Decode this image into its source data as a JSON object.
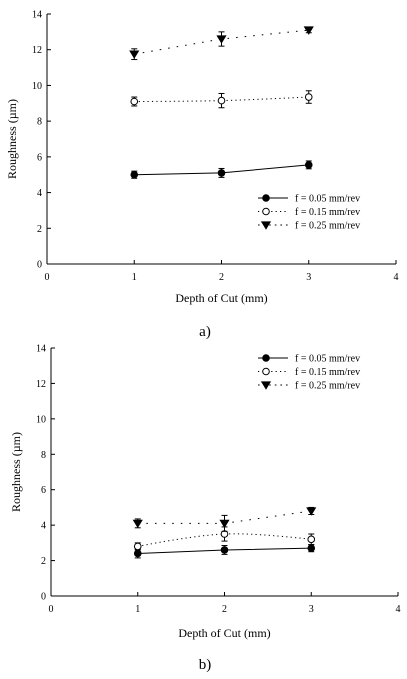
{
  "colors": {
    "axis": "#000000",
    "marker": "#000000",
    "open_marker_fill": "#ffffff"
  },
  "chart_data": [
    {
      "type": "line",
      "caption": "a)",
      "xlabel": "Depth of Cut (mm)",
      "ylabel": "Roughness (µm)",
      "xlim": [
        0,
        4
      ],
      "ylim": [
        0,
        14
      ],
      "xticks": [
        0,
        1,
        2,
        3,
        4
      ],
      "yticks": [
        0,
        2,
        4,
        6,
        8,
        10,
        12,
        14
      ],
      "grid": false,
      "legend_position": "bottom-right",
      "x": [
        1,
        2,
        3
      ],
      "series": [
        {
          "name": "f = 0.05 mm/rev",
          "marker": "filled-circle",
          "line": "solid",
          "values": [
            5.0,
            5.1,
            5.55
          ],
          "errors": [
            0.2,
            0.25,
            0.22
          ]
        },
        {
          "name": "f = 0.15 mm/rev",
          "marker": "open-circle",
          "line": "dotted",
          "values": [
            9.1,
            9.15,
            9.35
          ],
          "errors": [
            0.25,
            0.4,
            0.35
          ]
        },
        {
          "name": "f = 0.25 mm/rev",
          "marker": "filled-triangle-down",
          "line": "dashed",
          "values": [
            11.75,
            12.6,
            13.1
          ],
          "errors": [
            0.3,
            0.4,
            0.15
          ]
        }
      ]
    },
    {
      "type": "line",
      "caption": "b)",
      "xlabel": "Depth of Cut (mm)",
      "ylabel": "Roughness (µm)",
      "xlim": [
        0,
        4
      ],
      "ylim": [
        0,
        14
      ],
      "xticks": [
        0,
        1,
        2,
        3,
        4
      ],
      "yticks": [
        0,
        2,
        4,
        6,
        8,
        10,
        12,
        14
      ],
      "grid": false,
      "legend_position": "top-right",
      "x": [
        1,
        2,
        3
      ],
      "series": [
        {
          "name": "f = 0.05 mm/rev",
          "marker": "filled-circle",
          "line": "solid",
          "values": [
            2.4,
            2.6,
            2.7
          ],
          "errors": [
            0.25,
            0.25,
            0.2
          ]
        },
        {
          "name": "f = 0.15 mm/rev",
          "marker": "open-circle",
          "line": "dotted",
          "values": [
            2.8,
            3.5,
            3.2
          ],
          "errors": [
            0.2,
            0.4,
            0.3
          ]
        },
        {
          "name": "f = 0.25 mm/rev",
          "marker": "filled-triangle-down",
          "line": "dashed",
          "values": [
            4.1,
            4.1,
            4.8
          ],
          "errors": [
            0.25,
            0.45,
            0.2
          ]
        }
      ]
    }
  ]
}
